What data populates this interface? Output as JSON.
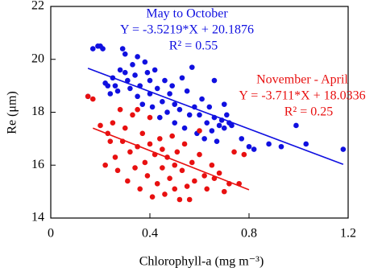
{
  "chart_data": {
    "type": "scatter",
    "xlabel": "Chlorophyll-a (mg m⁻³)",
    "ylabel": "Re (μm)",
    "xlim": [
      0,
      1.2
    ],
    "xticks": [
      0,
      0.4,
      0.8,
      1.2
    ],
    "ylim": [
      14,
      22
    ],
    "yticks": [
      14,
      16,
      18,
      20,
      22
    ],
    "series": [
      {
        "name": "May to October",
        "color": "#1010e0",
        "x": [
          0.15,
          0.17,
          0.19,
          0.2,
          0.21,
          0.22,
          0.23,
          0.24,
          0.25,
          0.26,
          0.27,
          0.28,
          0.29,
          0.3,
          0.3,
          0.31,
          0.32,
          0.33,
          0.34,
          0.35,
          0.35,
          0.36,
          0.37,
          0.38,
          0.39,
          0.4,
          0.4,
          0.41,
          0.42,
          0.43,
          0.44,
          0.45,
          0.46,
          0.47,
          0.48,
          0.5,
          0.5,
          0.52,
          0.53,
          0.54,
          0.55,
          0.56,
          0.57,
          0.58,
          0.59,
          0.6,
          0.61,
          0.62,
          0.63,
          0.64,
          0.65,
          0.66,
          0.67,
          0.68,
          0.69,
          0.7,
          0.71,
          0.72,
          0.73,
          0.66,
          0.77,
          0.82,
          0.88,
          0.93,
          0.99,
          1.03,
          1.18,
          0.8,
          0.7,
          0.49
        ],
        "values": [
          18.6,
          20.4,
          20.5,
          20.5,
          20.4,
          19.1,
          19.0,
          18.7,
          19.3,
          19.0,
          18.8,
          19.6,
          20.4,
          20.2,
          19.5,
          19.2,
          18.9,
          19.8,
          19.4,
          20.1,
          18.6,
          19.0,
          18.3,
          19.9,
          19.5,
          19.2,
          18.7,
          18.2,
          19.6,
          18.9,
          17.8,
          18.4,
          19.2,
          18.0,
          18.7,
          18.3,
          17.6,
          18.1,
          19.3,
          17.4,
          18.8,
          17.9,
          19.7,
          18.2,
          17.2,
          17.9,
          18.5,
          17.0,
          17.6,
          18.2,
          17.3,
          17.8,
          16.9,
          17.5,
          17.7,
          17.4,
          17.9,
          17.6,
          17.5,
          19.2,
          17.0,
          16.6,
          16.8,
          16.7,
          17.5,
          16.8,
          16.6,
          16.7,
          18.3,
          19.0
        ],
        "fit": {
          "x": [
            0.15,
            1.18
          ],
          "values": [
            19.66,
            16.03
          ]
        }
      },
      {
        "name": "November - April",
        "color": "#e81010",
        "x": [
          0.15,
          0.17,
          0.2,
          0.22,
          0.23,
          0.24,
          0.25,
          0.26,
          0.27,
          0.28,
          0.29,
          0.3,
          0.31,
          0.32,
          0.33,
          0.34,
          0.35,
          0.36,
          0.37,
          0.38,
          0.39,
          0.4,
          0.41,
          0.42,
          0.43,
          0.44,
          0.45,
          0.46,
          0.47,
          0.48,
          0.49,
          0.5,
          0.51,
          0.52,
          0.53,
          0.54,
          0.55,
          0.56,
          0.57,
          0.58,
          0.6,
          0.62,
          0.63,
          0.65,
          0.66,
          0.68,
          0.7,
          0.72,
          0.74,
          0.76,
          0.6,
          0.4,
          0.35,
          0.78,
          0.5,
          0.45
        ],
        "values": [
          18.6,
          18.5,
          17.5,
          16.0,
          17.2,
          16.9,
          17.6,
          16.3,
          15.8,
          18.1,
          16.9,
          17.4,
          15.4,
          16.5,
          17.9,
          15.9,
          16.7,
          15.1,
          17.2,
          16.1,
          15.6,
          16.8,
          14.8,
          16.4,
          15.3,
          17.0,
          15.9,
          14.9,
          16.3,
          15.5,
          17.1,
          15.1,
          16.5,
          14.7,
          15.8,
          16.8,
          15.2,
          14.7,
          16.1,
          15.4,
          16.4,
          15.6,
          15.1,
          16.0,
          15.5,
          15.7,
          15.0,
          15.3,
          16.5,
          15.3,
          17.3,
          17.8,
          18.1,
          16.4,
          16.0,
          16.6
        ],
        "fit": {
          "x": [
            0.17,
            0.8
          ],
          "values": [
            17.4,
            15.07
          ]
        }
      }
    ],
    "annotations": [
      {
        "lines": [
          "May to October",
          "Y = -3.5219*X + 20.1876",
          "R² = 0.55"
        ]
      },
      {
        "lines": [
          "November - April",
          "Y = -3.711*X + 18.0336",
          "R² = 0.25"
        ]
      }
    ]
  }
}
